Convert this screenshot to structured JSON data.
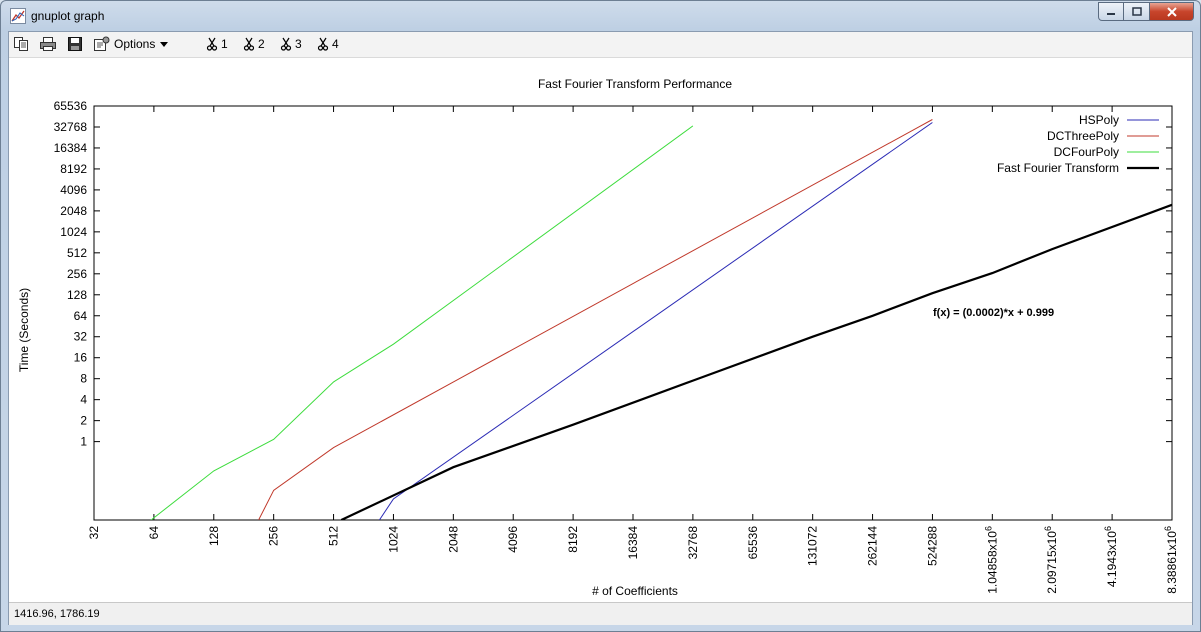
{
  "window": {
    "title": "gnuplot graph",
    "app_icon": "gnuplot-graph-icon"
  },
  "toolbar": {
    "icons": [
      "copy-icon",
      "print-icon",
      "save-icon",
      "options-icon"
    ],
    "options_label": "Options",
    "options_icon": "chevron-down-icon",
    "plot_toggles": [
      "1",
      "2",
      "3",
      "4"
    ],
    "toggle_icon": "scissors-icon"
  },
  "status": {
    "coordinates": "1416.96,  1786.19"
  },
  "chart_data": {
    "type": "line",
    "title": "Fast Fourier Transform Performance",
    "xlabel": "# of Coefficients",
    "ylabel": "Time (Seconds)",
    "xscale": "log2",
    "yscale": "log2",
    "xlim": [
      32,
      8388608
    ],
    "ylim": [
      0.075,
      65536
    ],
    "xticks": [
      {
        "value": 32,
        "label": "32"
      },
      {
        "value": 64,
        "label": "64"
      },
      {
        "value": 128,
        "label": "128"
      },
      {
        "value": 256,
        "label": "256"
      },
      {
        "value": 512,
        "label": "512"
      },
      {
        "value": 1024,
        "label": "1024"
      },
      {
        "value": 2048,
        "label": "2048"
      },
      {
        "value": 4096,
        "label": "4096"
      },
      {
        "value": 8192,
        "label": "8192"
      },
      {
        "value": 16384,
        "label": "16384"
      },
      {
        "value": 32768,
        "label": "32768"
      },
      {
        "value": 65536,
        "label": "65536"
      },
      {
        "value": 131072,
        "label": "131072"
      },
      {
        "value": 262144,
        "label": "262144"
      },
      {
        "value": 524288,
        "label": "524288"
      },
      {
        "value": 1048576,
        "label": "1.04858x10",
        "sup": "6"
      },
      {
        "value": 2097152,
        "label": "2.09715x10",
        "sup": "6"
      },
      {
        "value": 4194304,
        "label": "4.1943x10",
        "sup": "6"
      },
      {
        "value": 8388608,
        "label": "8.38861x10",
        "sup": "6"
      }
    ],
    "yticks": [
      {
        "value": 1,
        "label": "1"
      },
      {
        "value": 2,
        "label": "2"
      },
      {
        "value": 4,
        "label": "4"
      },
      {
        "value": 8,
        "label": "8"
      },
      {
        "value": 16,
        "label": "16"
      },
      {
        "value": 32,
        "label": "32"
      },
      {
        "value": 64,
        "label": "64"
      },
      {
        "value": 128,
        "label": "128"
      },
      {
        "value": 256,
        "label": "256"
      },
      {
        "value": 512,
        "label": "512"
      },
      {
        "value": 1024,
        "label": "1024"
      },
      {
        "value": 2048,
        "label": "2048"
      },
      {
        "value": 4096,
        "label": "4096"
      },
      {
        "value": 8192,
        "label": "8192"
      },
      {
        "value": 16384,
        "label": "16384"
      },
      {
        "value": 32768,
        "label": "32768"
      },
      {
        "value": 65536,
        "label": "65536"
      }
    ],
    "legend_position": "top-right",
    "grid": false,
    "series": [
      {
        "name": "HSPoly",
        "color": "#2b2bb5",
        "width": 1,
        "points": [
          [
            870,
            0.075
          ],
          [
            1024,
            0.15
          ],
          [
            524288,
            38000
          ]
        ]
      },
      {
        "name": "DCThreePoly",
        "color": "#c0392b",
        "width": 1,
        "points": [
          [
            215,
            0.075
          ],
          [
            256,
            0.2
          ],
          [
            512,
            0.82
          ],
          [
            524288,
            42000
          ]
        ]
      },
      {
        "name": "DCFourPoly",
        "color": "#3ddc3d",
        "width": 1,
        "points": [
          [
            62,
            0.075
          ],
          [
            128,
            0.38
          ],
          [
            256,
            1.08
          ],
          [
            512,
            7.2
          ],
          [
            1024,
            25
          ],
          [
            32768,
            34000
          ]
        ]
      },
      {
        "name": "Fast Fourier Transform",
        "color": "#000000",
        "width": 2.2,
        "points": [
          [
            560,
            0.075
          ],
          [
            2048,
            0.43
          ],
          [
            8192,
            1.75
          ],
          [
            32768,
            7.5
          ],
          [
            131072,
            32
          ],
          [
            262144,
            64
          ],
          [
            524288,
            135
          ],
          [
            1048576,
            262
          ],
          [
            2097152,
            580
          ],
          [
            8388608,
            2500
          ]
        ]
      }
    ],
    "annotation": "f(x) = (0.0002)*x + 0.999"
  }
}
